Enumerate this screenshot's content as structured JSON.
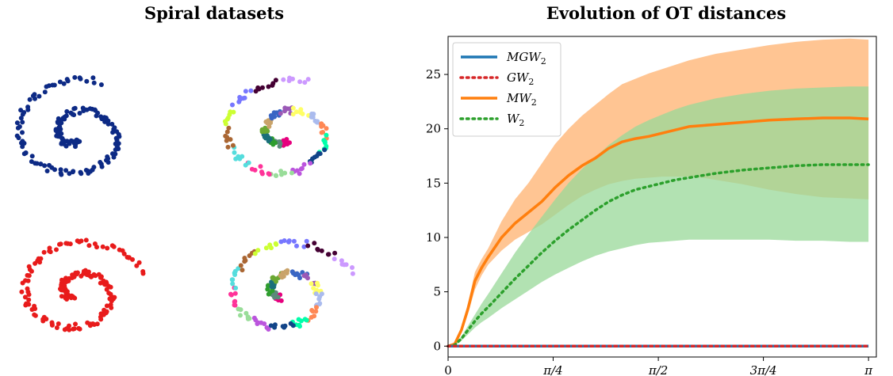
{
  "titles": {
    "left": "Spiral datasets",
    "right": "Evolution of OT distances"
  },
  "colors": {
    "spiral_top_left": "#0d2a85",
    "spiral_bottom_left": "#e81b1b",
    "MGW2": "#1f77b4",
    "GW2": "#d62728",
    "MW2": "#ff7f0e",
    "W2": "#2ca02c",
    "MW2_band": "#ffbb80",
    "W2_band": "#98d898"
  },
  "chart_data": [
    {
      "type": "scatter",
      "title": "Spiral datasets",
      "panels": [
        {
          "position": "top-left",
          "coloring": "single",
          "turns": 1.8,
          "rotation": 0.0,
          "points": 170
        },
        {
          "position": "top-right",
          "coloring": "clusters",
          "turns": 1.8,
          "rotation": 0.0,
          "points": 170
        },
        {
          "position": "bottom-left",
          "coloring": "single",
          "turns": 1.8,
          "rotation": 0.9,
          "points": 170
        },
        {
          "position": "bottom-right",
          "coloring": "clusters",
          "turns": 1.8,
          "rotation": 0.9,
          "points": 170
        }
      ]
    },
    {
      "type": "line",
      "title": "Evolution of OT distances",
      "xlabel": "",
      "ylabel": "",
      "xlim": [
        0,
        3.2
      ],
      "ylim": [
        -1,
        28.5
      ],
      "x_ticks": [
        {
          "value": 0,
          "label": "0"
        },
        {
          "value": 0.785,
          "label": "π/4"
        },
        {
          "value": 1.571,
          "label": "π/2"
        },
        {
          "value": 2.356,
          "label": "3π/4"
        },
        {
          "value": 3.1416,
          "label": "π"
        }
      ],
      "y_ticks": [
        0,
        5,
        10,
        15,
        20,
        25
      ],
      "legend_position": "top-left",
      "x": [
        0,
        0.05,
        0.1,
        0.15,
        0.2,
        0.25,
        0.3,
        0.4,
        0.5,
        0.6,
        0.7,
        0.8,
        0.9,
        1.0,
        1.1,
        1.2,
        1.3,
        1.4,
        1.5,
        1.6,
        1.7,
        1.8,
        1.9,
        2.0,
        2.2,
        2.4,
        2.6,
        2.8,
        3.0,
        3.1416
      ],
      "series": [
        {
          "name": "MGW2",
          "name_base": "MGW",
          "name_sub": "2",
          "style": "solid",
          "values": [
            0,
            0,
            0,
            0,
            0,
            0,
            0,
            0,
            0,
            0,
            0,
            0,
            0,
            0,
            0,
            0,
            0,
            0,
            0,
            0,
            0,
            0,
            0,
            0,
            0,
            0,
            0,
            0,
            0,
            0
          ]
        },
        {
          "name": "GW2",
          "name_base": "GW",
          "name_sub": "2",
          "style": "dotted",
          "values": [
            0,
            0,
            0,
            0,
            0,
            0,
            0,
            0,
            0,
            0,
            0,
            0,
            0,
            0,
            0,
            0,
            0,
            0,
            0,
            0,
            0,
            0,
            0,
            0,
            0,
            0,
            0,
            0,
            0,
            0
          ]
        },
        {
          "name": "MW2",
          "name_base": "MW",
          "name_sub": "2",
          "style": "solid",
          "values": [
            0,
            0.2,
            1.5,
            3.5,
            6.0,
            7.2,
            8.2,
            10.0,
            11.3,
            12.3,
            13.3,
            14.6,
            15.7,
            16.6,
            17.3,
            18.2,
            18.8,
            19.1,
            19.3,
            19.6,
            19.9,
            20.2,
            20.3,
            20.4,
            20.6,
            20.8,
            20.9,
            21.0,
            21.0,
            20.9
          ],
          "band_upper": [
            0,
            0.3,
            1.8,
            4.0,
            6.8,
            8.0,
            9.0,
            11.5,
            13.5,
            15.0,
            16.8,
            18.6,
            20.0,
            21.2,
            22.2,
            23.2,
            24.1,
            24.6,
            25.1,
            25.5,
            25.9,
            26.3,
            26.6,
            26.9,
            27.3,
            27.7,
            28.0,
            28.2,
            28.3,
            28.2
          ],
          "band_lower": [
            0,
            0.1,
            1.2,
            3.0,
            5.2,
            6.5,
            7.5,
            8.8,
            9.8,
            10.5,
            11.2,
            12.1,
            13.0,
            13.8,
            14.4,
            14.9,
            15.2,
            15.4,
            15.5,
            15.6,
            15.6,
            15.6,
            15.5,
            15.3,
            14.9,
            14.4,
            14.0,
            13.7,
            13.6,
            13.5
          ]
        },
        {
          "name": "W2",
          "name_base": "W",
          "name_sub": "2",
          "style": "dotted",
          "values": [
            0,
            0.1,
            0.7,
            1.5,
            2.3,
            3.0,
            3.6,
            4.9,
            6.2,
            7.4,
            8.6,
            9.7,
            10.7,
            11.6,
            12.5,
            13.3,
            13.9,
            14.4,
            14.7,
            15.0,
            15.3,
            15.5,
            15.7,
            15.9,
            16.2,
            16.4,
            16.6,
            16.7,
            16.7,
            16.7
          ],
          "band_upper": [
            0,
            0.15,
            0.9,
            1.9,
            2.9,
            3.9,
            4.8,
            6.7,
            8.6,
            10.3,
            11.9,
            13.5,
            15.0,
            16.3,
            17.4,
            18.5,
            19.4,
            20.2,
            20.8,
            21.3,
            21.8,
            22.2,
            22.5,
            22.8,
            23.2,
            23.5,
            23.7,
            23.8,
            23.9,
            23.9
          ],
          "band_lower": [
            0,
            0.05,
            0.5,
            1.1,
            1.7,
            2.2,
            2.6,
            3.5,
            4.3,
            5.1,
            5.9,
            6.6,
            7.2,
            7.8,
            8.3,
            8.7,
            9.0,
            9.3,
            9.5,
            9.6,
            9.7,
            9.8,
            9.8,
            9.8,
            9.8,
            9.8,
            9.7,
            9.7,
            9.6,
            9.6
          ]
        }
      ]
    }
  ]
}
